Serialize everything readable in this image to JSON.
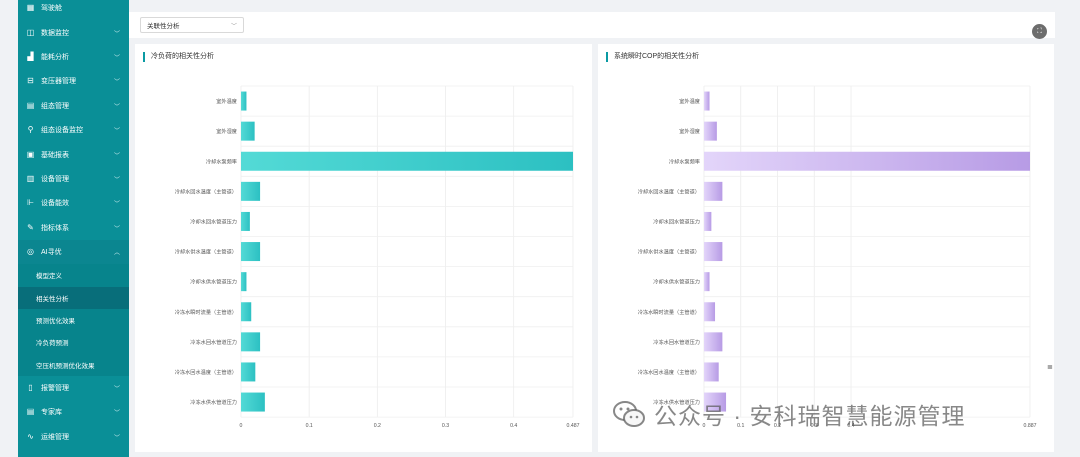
{
  "sidebar": {
    "items": [
      {
        "label": "驾驶舱",
        "icon": "dashboard-icon",
        "chevron": false
      },
      {
        "label": "数据监控",
        "icon": "monitor-icon",
        "chevron": true
      },
      {
        "label": "能耗分析",
        "icon": "bar-chart-icon",
        "chevron": true
      },
      {
        "label": "变压器管理",
        "icon": "transformer-icon",
        "chevron": true
      },
      {
        "label": "组态管理",
        "icon": "grid-icon",
        "chevron": true
      },
      {
        "label": "组态设备监控",
        "icon": "network-icon",
        "chevron": true
      },
      {
        "label": "基础报表",
        "icon": "report-icon",
        "chevron": true
      },
      {
        "label": "设备管理",
        "icon": "device-icon",
        "chevron": true
      },
      {
        "label": "设备能效",
        "icon": "efficiency-icon",
        "chevron": true
      },
      {
        "label": "指标体系",
        "icon": "edit-icon",
        "chevron": true
      },
      {
        "label": "AI寻优",
        "icon": "ai-icon",
        "chevron": true,
        "open": true
      }
    ],
    "sub_items": [
      {
        "label": "模型定义",
        "active": false
      },
      {
        "label": "相关性分析",
        "active": true
      },
      {
        "label": "预测优化效果",
        "active": false
      },
      {
        "label": "冷负荷预测",
        "active": false
      },
      {
        "label": "空压机预测优化效果",
        "active": false
      }
    ],
    "bottom_items": [
      {
        "label": "报警管理",
        "icon": "alarm-icon",
        "chevron": true
      },
      {
        "label": "专家库",
        "icon": "book-icon",
        "chevron": true
      },
      {
        "label": "运维管理",
        "icon": "maintenance-icon",
        "chevron": true
      }
    ]
  },
  "toolbar": {
    "select_value": "关联性分析",
    "fullscreen_icon": "fullscreen-icon"
  },
  "panels": {
    "left_title": "冷负荷的相关性分析",
    "right_title": "系统瞬时COP的相关性分析"
  },
  "side_glyph": "≣",
  "watermark": {
    "text": "公众号 · 安科瑞智慧能源管理",
    "icon": "wechat-icon"
  },
  "colors": {
    "sidebar_bg": "#0a8f97",
    "accent": "#0a9aa3",
    "teal_bar": "#3fcfcf",
    "teal_bar_dark": "#2bbcbf",
    "purple_bar_light": "#dccbf7",
    "purple_bar_dark": "#b99ee6"
  },
  "chart_data": [
    {
      "type": "bar",
      "orientation": "horizontal",
      "title": "冷负荷的相关性分析",
      "categories": [
        "室外温度",
        "室外湿度",
        "冷却水泵频率",
        "冷却水回水温度（主管道）",
        "冷却水回水管道压力",
        "冷却水供水温度（主管道）",
        "冷却水供水管道压力",
        "冷冻水瞬时流量（主管道）",
        "冷冻水回水管道压力",
        "冷冻水回水温度（主管道）",
        "冷冻水供水管道压力"
      ],
      "values": [
        0.008,
        0.02,
        0.487,
        0.028,
        0.013,
        0.028,
        0.008,
        0.015,
        0.028,
        0.021,
        0.035
      ],
      "xlim": [
        0,
        0.487
      ],
      "xticks": [
        "0",
        "0.1",
        "0.2",
        "0.3",
        "0.4",
        "0.487"
      ],
      "color": "#3fcfcf"
    },
    {
      "type": "bar",
      "orientation": "horizontal",
      "title": "系统瞬时COP的相关性分析",
      "categories": [
        "室外温度",
        "室外湿度",
        "冷却水泵频率",
        "冷却水回水温度（主管道）",
        "冷却水回水管道压力",
        "冷却水供水温度（主管道）",
        "冷却水供水管道压力",
        "冷冻水瞬时流量（主管道）",
        "冷冻水回水管道压力",
        "冷冻水回水温度（主管道）",
        "冷冻水供水管道压力"
      ],
      "values": [
        0.015,
        0.035,
        0.887,
        0.05,
        0.02,
        0.05,
        0.015,
        0.03,
        0.05,
        0.04,
        0.06
      ],
      "xlim": [
        0,
        0.887
      ],
      "xticks": [
        "0",
        "0.1",
        "0.2",
        "0.3",
        "0.4",
        "0.887"
      ],
      "color": "#c8b2f0"
    }
  ]
}
